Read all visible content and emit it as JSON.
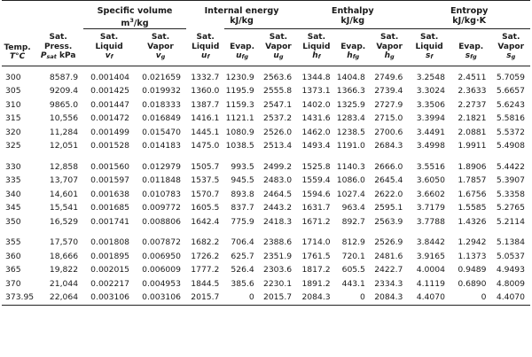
{
  "groups": {
    "specific_volume": "Specific volume",
    "specific_volume_unit": "m³/kg",
    "internal_energy": "Internal energy",
    "internal_energy_unit": "kJ/kg",
    "enthalpy": "Enthalpy",
    "enthalpy_unit": "kJ/kg",
    "entropy": "Entropy",
    "entropy_unit": "kJ/kg·K"
  },
  "headers": {
    "temp": [
      "Temp.",
      "T°C"
    ],
    "press": [
      "Sat.",
      "Press.",
      "Psat kPa"
    ],
    "v": [
      [
        "Sat.",
        "Liquid",
        "vf"
      ],
      [
        "Sat.",
        "Vapor",
        "vg"
      ]
    ],
    "u": [
      [
        "Sat.",
        "Liquid",
        "uf"
      ],
      [
        "",
        "Evap.",
        "ufg"
      ],
      [
        "Sat.",
        "Vapor",
        "ug"
      ]
    ],
    "h": [
      [
        "Sat.",
        "Liquid",
        "hf"
      ],
      [
        "",
        "Evap.",
        "hfg"
      ],
      [
        "Sat.",
        "Vapor",
        "hg"
      ]
    ],
    "s": [
      [
        "Sat.",
        "Liquid",
        "sf"
      ],
      [
        "",
        "Evap.",
        "sfg"
      ],
      [
        "Sat.",
        "Vapor",
        "sg"
      ]
    ]
  },
  "rows": [
    [
      "300",
      "8587.9",
      "0.001404",
      "0.021659",
      "1332.7",
      "1230.9",
      "2563.6",
      "1344.8",
      "1404.8",
      "2749.6",
      "3.2548",
      "2.4511",
      "5.7059"
    ],
    [
      "305",
      "9209.4",
      "0.001425",
      "0.019932",
      "1360.0",
      "1195.9",
      "2555.8",
      "1373.1",
      "1366.3",
      "2739.4",
      "3.3024",
      "2.3633",
      "5.6657"
    ],
    [
      "310",
      "9865.0",
      "0.001447",
      "0.018333",
      "1387.7",
      "1159.3",
      "2547.1",
      "1402.0",
      "1325.9",
      "2727.9",
      "3.3506",
      "2.2737",
      "5.6243"
    ],
    [
      "315",
      "10,556",
      "0.001472",
      "0.016849",
      "1416.1",
      "1121.1",
      "2537.2",
      "1431.6",
      "1283.4",
      "2715.0",
      "3.3994",
      "2.1821",
      "5.5816"
    ],
    [
      "320",
      "11,284",
      "0.001499",
      "0.015470",
      "1445.1",
      "1080.9",
      "2526.0",
      "1462.0",
      "1238.5",
      "2700.6",
      "3.4491",
      "2.0881",
      "5.5372"
    ],
    [
      "325",
      "12,051",
      "0.001528",
      "0.014183",
      "1475.0",
      "1038.5",
      "2513.4",
      "1493.4",
      "1191.0",
      "2684.3",
      "3.4998",
      "1.9911",
      "5.4908"
    ],
    [
      "330",
      "12,858",
      "0.001560",
      "0.012979",
      "1505.7",
      "993.5",
      "2499.2",
      "1525.8",
      "1140.3",
      "2666.0",
      "3.5516",
      "1.8906",
      "5.4422"
    ],
    [
      "335",
      "13,707",
      "0.001597",
      "0.011848",
      "1537.5",
      "945.5",
      "2483.0",
      "1559.4",
      "1086.0",
      "2645.4",
      "3.6050",
      "1.7857",
      "5.3907"
    ],
    [
      "340",
      "14,601",
      "0.001638",
      "0.010783",
      "1570.7",
      "893.8",
      "2464.5",
      "1594.6",
      "1027.4",
      "2622.0",
      "3.6602",
      "1.6756",
      "5.3358"
    ],
    [
      "345",
      "15,541",
      "0.001685",
      "0.009772",
      "1605.5",
      "837.7",
      "2443.2",
      "1631.7",
      "963.4",
      "2595.1",
      "3.7179",
      "1.5585",
      "5.2765"
    ],
    [
      "350",
      "16,529",
      "0.001741",
      "0.008806",
      "1642.4",
      "775.9",
      "2418.3",
      "1671.2",
      "892.7",
      "2563.9",
      "3.7788",
      "1.4326",
      "5.2114"
    ],
    [
      "355",
      "17,570",
      "0.001808",
      "0.007872",
      "1682.2",
      "706.4",
      "2388.6",
      "1714.0",
      "812.9",
      "2526.9",
      "3.8442",
      "1.2942",
      "5.1384"
    ],
    [
      "360",
      "18,666",
      "0.001895",
      "0.006950",
      "1726.2",
      "625.7",
      "2351.9",
      "1761.5",
      "720.1",
      "2481.6",
      "3.9165",
      "1.1373",
      "5.0537"
    ],
    [
      "365",
      "19,822",
      "0.002015",
      "0.006009",
      "1777.2",
      "526.4",
      "2303.6",
      "1817.2",
      "605.5",
      "2422.7",
      "4.0004",
      "0.9489",
      "4.9493"
    ],
    [
      "370",
      "21,044",
      "0.002217",
      "0.004953",
      "1844.5",
      "385.6",
      "2230.1",
      "1891.2",
      "443.1",
      "2334.3",
      "4.1119",
      "0.6890",
      "4.8009"
    ],
    [
      "373.95",
      "22,064",
      "0.003106",
      "0.003106",
      "2015.7",
      "0",
      "2015.7",
      "2084.3",
      "0",
      "2084.3",
      "4.4070",
      "0",
      "4.4070"
    ]
  ]
}
